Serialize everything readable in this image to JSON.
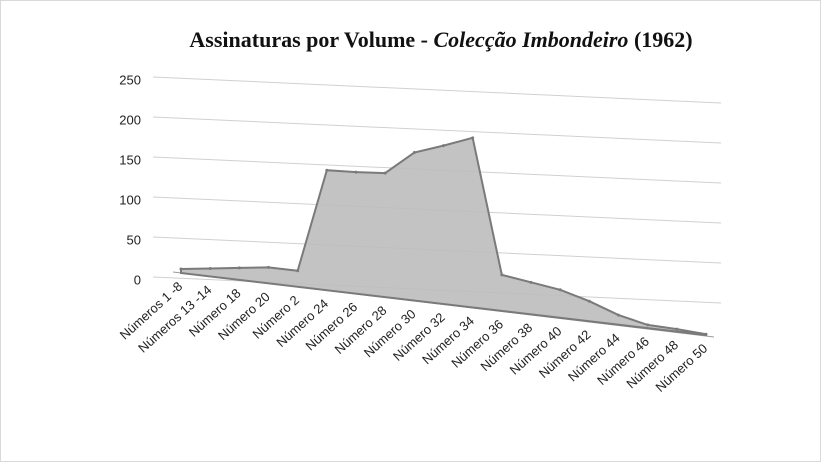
{
  "chart_data": {
    "type": "area",
    "title_parts": [
      "Assinaturas por Volume - ",
      "Colecção Imbondeiro",
      " (1962)"
    ],
    "categories": [
      "Números 1 -8",
      "Números 13 -14",
      "Número 18",
      "Número 20",
      "Número 2",
      "Número 24",
      "Número 26",
      "Número 28",
      "Número 30",
      "Número 32",
      "Número 34",
      "Número 36",
      "Número 38",
      "Número 40",
      "Número 42",
      "Número 44",
      "Número 46",
      "Número 48",
      "Número 50"
    ],
    "values": [
      5,
      10,
      15,
      20,
      20,
      150,
      152,
      155,
      185,
      198,
      212,
      45,
      40,
      35,
      25,
      12,
      4,
      3,
      1
    ],
    "color": "#bdbdbd",
    "ylim": [
      0,
      250
    ],
    "yticks": [
      0,
      50,
      100,
      150,
      200,
      250
    ],
    "grid": true
  }
}
